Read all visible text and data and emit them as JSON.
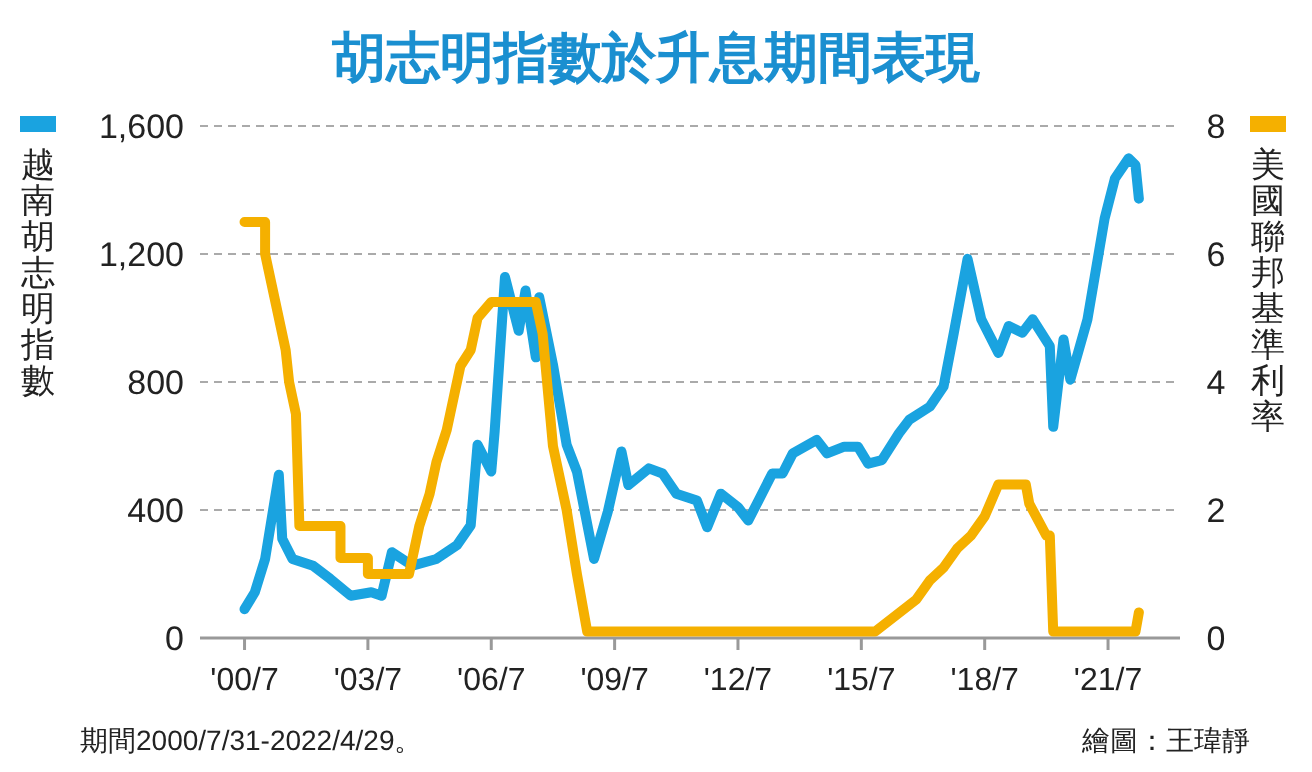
{
  "chart_data": {
    "type": "line",
    "title": "胡志明指數於升息期間表現",
    "ylabel": "越南胡志明指數",
    "y2label": "美國聯邦基準利率",
    "annotations": [
      "期間2000/7/31-2022/4/29。",
      "繪圖：王瑋靜"
    ],
    "series": [
      {
        "color": "#1aa3e0",
        "x": [
          "2000-07",
          "2000-10",
          "2001-01",
          "2001-05",
          "2001-06",
          "2001-09",
          "2002-03",
          "2002-08",
          "2003-02",
          "2003-08",
          "2003-11",
          "2004-02",
          "2004-08",
          "2005-03",
          "2005-09",
          "2006-01",
          "2006-03",
          "2006-07",
          "2006-08",
          "2006-11",
          "2007-03",
          "2007-05",
          "2007-08",
          "2007-09",
          "2008-01",
          "2008-05",
          "2008-08",
          "2009-01",
          "2009-05",
          "2009-09",
          "2009-11",
          "2010-05",
          "2010-09",
          "2011-01",
          "2011-07",
          "2011-10",
          "2012-02",
          "2012-07",
          "2012-10",
          "2013-01",
          "2013-05",
          "2013-08",
          "2013-11",
          "2014-06",
          "2014-09",
          "2015-02",
          "2015-06",
          "2015-09",
          "2016-01",
          "2016-06",
          "2016-09",
          "2017-03",
          "2017-07",
          "2017-10",
          "2018-02",
          "2018-06",
          "2018-08",
          "2018-11",
          "2019-02",
          "2019-06",
          "2019-09",
          "2020-02",
          "2020-03",
          "2020-06",
          "2020-08",
          "2021-01",
          "2021-06",
          "2021-09",
          "2022-01",
          "2022-03",
          "2022-04"
        ],
        "values": [
          90,
          143,
          247,
          510,
          310,
          247,
          226,
          185,
          132,
          143,
          132,
          268,
          226,
          247,
          290,
          352,
          604,
          520,
          646,
          1128,
          960,
          1086,
          877,
          1065,
          855,
          604,
          520,
          247,
          394,
          583,
          478,
          530,
          514,
          451,
          430,
          346,
          451,
          409,
          367,
          430,
          514,
          514,
          577,
          619,
          577,
          598,
          598,
          545,
          556,
          640,
          682,
          723,
          786,
          954,
          1185,
          996,
          954,
          891,
          975,
          954,
          996,
          912,
          660,
          933,
          807,
          996,
          1311,
          1436,
          1499,
          1478,
          1373
        ]
      },
      {
        "color": "#f5b000",
        "axis": "y2",
        "x": [
          "2000-07",
          "2001-01",
          "2001-01",
          "2001-03",
          "2001-05",
          "2001-07",
          "2001-08",
          "2001-09",
          "2001-10",
          "2001-11",
          "2002-11",
          "2002-11",
          "2003-07",
          "2003-07",
          "2004-07",
          "2004-08",
          "2004-10",
          "2005-01",
          "2005-03",
          "2005-06",
          "2005-08",
          "2005-10",
          "2006-01",
          "2006-03",
          "2006-07",
          "2007-08",
          "2007-10",
          "2008-01",
          "2008-05",
          "2008-08",
          "2008-11",
          "2015-11",
          "2016-11",
          "2017-03",
          "2017-07",
          "2017-11",
          "2018-03",
          "2018-07",
          "2018-11",
          "2019-07",
          "2019-08",
          "2019-10",
          "2020-01",
          "2020-02",
          "2020-03",
          "2022-03",
          "2022-04"
        ],
        "values": [
          6.5,
          6.5,
          6.0,
          5.5,
          5.0,
          4.5,
          4.0,
          3.75,
          3.5,
          1.75,
          1.75,
          1.25,
          1.25,
          1.0,
          1.0,
          1.25,
          1.75,
          2.25,
          2.75,
          3.25,
          3.75,
          4.25,
          4.5,
          5.0,
          5.25,
          5.25,
          4.75,
          3.0,
          2.0,
          1.0,
          0.1,
          0.1,
          0.6,
          0.9,
          1.1,
          1.4,
          1.6,
          1.9,
          2.4,
          2.4,
          2.1,
          1.9,
          1.6,
          1.6,
          0.1,
          0.1,
          0.4
        ]
      }
    ],
    "xlim": [
      "1999-06",
      "2023-04"
    ],
    "xticks": [
      {
        "value": "2000-07",
        "label": "'00/7"
      },
      {
        "value": "2003-07",
        "label": "'03/7"
      },
      {
        "value": "2006-07",
        "label": "'06/7"
      },
      {
        "value": "2009-07",
        "label": "'09/7"
      },
      {
        "value": "2012-07",
        "label": "'12/7"
      },
      {
        "value": "2015-07",
        "label": "'15/7"
      },
      {
        "value": "2018-07",
        "label": "'18/7"
      },
      {
        "value": "2021-07",
        "label": "'21/7"
      }
    ],
    "ylim": [
      0,
      1600
    ],
    "yticks": [
      0,
      400,
      800,
      {
        "value": 1200,
        "label": "1,200"
      },
      {
        "value": 1600,
        "label": "1,600"
      }
    ],
    "y2lim": [
      0,
      8
    ],
    "y2ticks": [
      0,
      2,
      4,
      6,
      8
    ],
    "grid": "y"
  }
}
